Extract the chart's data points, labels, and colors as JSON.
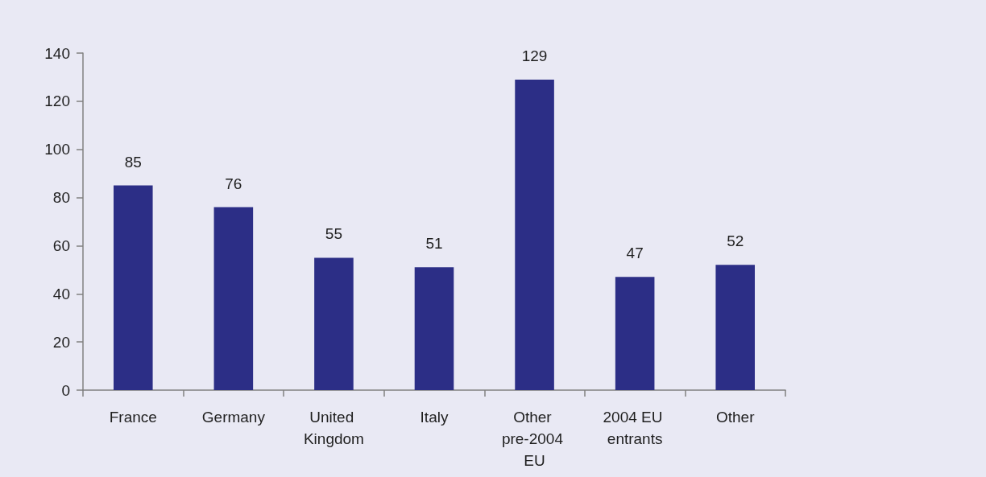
{
  "chart_data": {
    "type": "bar",
    "categories": [
      "France",
      "Germany",
      "United Kingdom",
      "Italy",
      "Other pre-2004 EU",
      "2004 EU entrants",
      "Other"
    ],
    "values": [
      85,
      76,
      55,
      51,
      129,
      47,
      52
    ],
    "color": "#2c2e86",
    "ylim": [
      0,
      140
    ],
    "yticks": [
      0,
      20,
      40,
      60,
      80,
      100,
      120,
      140
    ],
    "grid": false,
    "data_labels": true
  }
}
